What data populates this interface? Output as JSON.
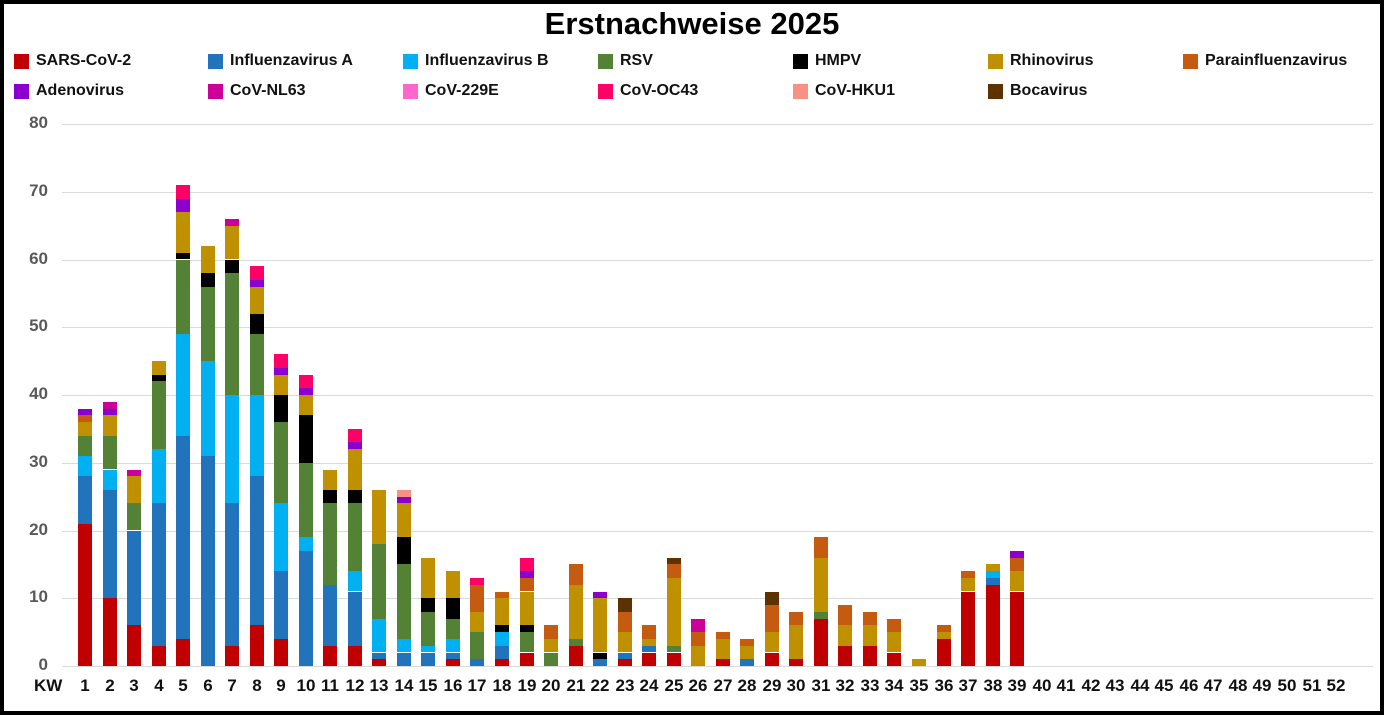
{
  "title": "Erstnachweise 2025",
  "x_axis": {
    "prefix": "KW",
    "categories": [
      1,
      2,
      3,
      4,
      5,
      6,
      7,
      8,
      9,
      10,
      11,
      12,
      13,
      14,
      15,
      16,
      17,
      18,
      19,
      20,
      21,
      22,
      23,
      24,
      25,
      26,
      27,
      28,
      29,
      30,
      31,
      32,
      33,
      34,
      35,
      36,
      37,
      38,
      39,
      40,
      41,
      42,
      43,
      44,
      45,
      46,
      47,
      48,
      49,
      50,
      51,
      52
    ]
  },
  "y_axis": {
    "min": 0,
    "max": 80,
    "step": 10,
    "ticks": [
      0,
      10,
      20,
      30,
      40,
      50,
      60,
      70,
      80
    ]
  },
  "legend": {
    "rows": 2,
    "columns": 7
  },
  "chart_data": {
    "type": "bar",
    "stacked": true,
    "title": "Erstnachweise 2025",
    "xlabel": "KW",
    "ylabel": "",
    "ylim": [
      0,
      80
    ],
    "grid": "horizontal",
    "legend_position": "top",
    "categories": [
      1,
      2,
      3,
      4,
      5,
      6,
      7,
      8,
      9,
      10,
      11,
      12,
      13,
      14,
      15,
      16,
      17,
      18,
      19,
      20,
      21,
      22,
      23,
      24,
      25,
      26,
      27,
      28,
      29,
      30,
      31,
      32,
      33,
      34,
      35,
      36,
      37,
      38,
      39,
      40,
      41,
      42,
      43,
      44,
      45,
      46,
      47,
      48,
      49,
      50,
      51,
      52
    ],
    "series": [
      {
        "name": "SARS-CoV-2",
        "color": "#C00000",
        "values": [
          21,
          10,
          6,
          3,
          4,
          0,
          3,
          6,
          4,
          0,
          3,
          3,
          1,
          0,
          0,
          1,
          0,
          1,
          2,
          0,
          3,
          0,
          1,
          2,
          2,
          0,
          1,
          0,
          2,
          1,
          7,
          3,
          3,
          2,
          0,
          4,
          11,
          12,
          11,
          0,
          0,
          0,
          0,
          0,
          0,
          0,
          0,
          0,
          0,
          0,
          0,
          0
        ]
      },
      {
        "name": "Influenzavirus A",
        "color": "#2173BC",
        "values": [
          7,
          16,
          14,
          21,
          30,
          31,
          21,
          22,
          10,
          17,
          9,
          8,
          1,
          2,
          2,
          1,
          1,
          2,
          0,
          0,
          0,
          1,
          1,
          1,
          0,
          0,
          0,
          1,
          0,
          0,
          0,
          0,
          0,
          0,
          0,
          0,
          0,
          1,
          0,
          0,
          0,
          0,
          0,
          0,
          0,
          0,
          0,
          0,
          0,
          0,
          0,
          0
        ]
      },
      {
        "name": "Influenzavirus B",
        "color": "#00B0F0",
        "values": [
          3,
          3,
          0,
          8,
          15,
          14,
          16,
          12,
          10,
          2,
          0,
          3,
          5,
          2,
          1,
          2,
          0,
          2,
          0,
          0,
          0,
          0,
          0,
          0,
          0,
          0,
          0,
          0,
          0,
          0,
          0,
          0,
          0,
          0,
          0,
          0,
          0,
          1,
          0,
          0,
          0,
          0,
          0,
          0,
          0,
          0,
          0,
          0,
          0,
          0,
          0,
          0
        ]
      },
      {
        "name": "RSV",
        "color": "#538135",
        "values": [
          3,
          5,
          4,
          10,
          11,
          11,
          18,
          9,
          12,
          11,
          12,
          10,
          11,
          11,
          5,
          3,
          4,
          0,
          3,
          2,
          1,
          0,
          0,
          0,
          1,
          0,
          0,
          0,
          0,
          0,
          1,
          0,
          0,
          0,
          0,
          0,
          0,
          0,
          0,
          0,
          0,
          0,
          0,
          0,
          0,
          0,
          0,
          0,
          0,
          0,
          0,
          0
        ]
      },
      {
        "name": "HMPV",
        "color": "#000000",
        "values": [
          0,
          0,
          0,
          1,
          1,
          2,
          2,
          3,
          4,
          7,
          2,
          2,
          0,
          4,
          2,
          3,
          0,
          1,
          1,
          0,
          0,
          1,
          0,
          0,
          0,
          0,
          0,
          0,
          0,
          0,
          0,
          0,
          0,
          0,
          0,
          0,
          0,
          0,
          0,
          0,
          0,
          0,
          0,
          0,
          0,
          0,
          0,
          0,
          0,
          0,
          0,
          0
        ]
      },
      {
        "name": "Rhinovirus",
        "color": "#BF9000",
        "values": [
          2,
          3,
          4,
          2,
          6,
          4,
          5,
          4,
          3,
          3,
          3,
          6,
          8,
          5,
          6,
          4,
          3,
          4,
          5,
          2,
          8,
          8,
          3,
          1,
          10,
          3,
          3,
          2,
          3,
          5,
          8,
          3,
          3,
          3,
          1,
          1,
          2,
          1,
          3,
          0,
          0,
          0,
          0,
          0,
          0,
          0,
          0,
          0,
          0,
          0,
          0,
          0
        ]
      },
      {
        "name": "Parainfluenzavirus",
        "color": "#C55A11",
        "values": [
          1,
          0,
          0,
          0,
          0,
          0,
          0,
          0,
          0,
          0,
          0,
          0,
          0,
          0,
          0,
          0,
          4,
          1,
          2,
          2,
          3,
          0,
          3,
          2,
          2,
          2,
          1,
          1,
          4,
          2,
          3,
          3,
          2,
          2,
          0,
          1,
          1,
          0,
          2,
          0,
          0,
          0,
          0,
          0,
          0,
          0,
          0,
          0,
          0,
          0,
          0,
          0
        ]
      },
      {
        "name": "Adenovirus",
        "color": "#8B00CE",
        "values": [
          1,
          1,
          0,
          0,
          2,
          0,
          0,
          1,
          1,
          1,
          0,
          1,
          0,
          1,
          0,
          0,
          0,
          0,
          1,
          0,
          0,
          1,
          0,
          0,
          0,
          0,
          0,
          0,
          0,
          0,
          0,
          0,
          0,
          0,
          0,
          0,
          0,
          0,
          1,
          0,
          0,
          0,
          0,
          0,
          0,
          0,
          0,
          0,
          0,
          0,
          0,
          0
        ]
      },
      {
        "name": "CoV-NL63",
        "color": "#CC0099",
        "values": [
          0,
          1,
          1,
          0,
          0,
          0,
          1,
          0,
          0,
          0,
          0,
          0,
          0,
          0,
          0,
          0,
          0,
          0,
          0,
          0,
          0,
          0,
          0,
          0,
          0,
          2,
          0,
          0,
          0,
          0,
          0,
          0,
          0,
          0,
          0,
          0,
          0,
          0,
          0,
          0,
          0,
          0,
          0,
          0,
          0,
          0,
          0,
          0,
          0,
          0,
          0,
          0
        ]
      },
      {
        "name": "CoV-229E",
        "color": "#FF66CC",
        "values": [
          0,
          0,
          0,
          0,
          0,
          0,
          0,
          0,
          0,
          0,
          0,
          0,
          0,
          0,
          0,
          0,
          0,
          0,
          0,
          0,
          0,
          0,
          0,
          0,
          0,
          0,
          0,
          0,
          0,
          0,
          0,
          0,
          0,
          0,
          0,
          0,
          0,
          0,
          0,
          0,
          0,
          0,
          0,
          0,
          0,
          0,
          0,
          0,
          0,
          0,
          0,
          0
        ]
      },
      {
        "name": "CoV-OC43",
        "color": "#FF0066",
        "values": [
          0,
          0,
          0,
          0,
          2,
          0,
          0,
          2,
          2,
          2,
          0,
          2,
          0,
          0,
          0,
          0,
          1,
          0,
          2,
          0,
          0,
          0,
          0,
          0,
          0,
          0,
          0,
          0,
          0,
          0,
          0,
          0,
          0,
          0,
          0,
          0,
          0,
          0,
          0,
          0,
          0,
          0,
          0,
          0,
          0,
          0,
          0,
          0,
          0,
          0,
          0,
          0
        ]
      },
      {
        "name": "CoV-HKU1",
        "color": "#F89084",
        "values": [
          0,
          0,
          0,
          0,
          0,
          0,
          0,
          0,
          0,
          0,
          0,
          0,
          0,
          1,
          0,
          0,
          0,
          0,
          0,
          0,
          0,
          0,
          0,
          0,
          0,
          0,
          0,
          0,
          0,
          0,
          0,
          0,
          0,
          0,
          0,
          0,
          0,
          0,
          0,
          0,
          0,
          0,
          0,
          0,
          0,
          0,
          0,
          0,
          0,
          0,
          0,
          0
        ]
      },
      {
        "name": "Bocavirus",
        "color": "#5C3300",
        "values": [
          0,
          0,
          0,
          0,
          0,
          0,
          0,
          0,
          0,
          0,
          0,
          0,
          0,
          0,
          0,
          0,
          0,
          0,
          0,
          0,
          0,
          0,
          2,
          0,
          1,
          0,
          0,
          0,
          2,
          0,
          0,
          0,
          0,
          0,
          0,
          0,
          0,
          0,
          0,
          0,
          0,
          0,
          0,
          0,
          0,
          0,
          0,
          0,
          0,
          0,
          0,
          0
        ]
      }
    ]
  }
}
